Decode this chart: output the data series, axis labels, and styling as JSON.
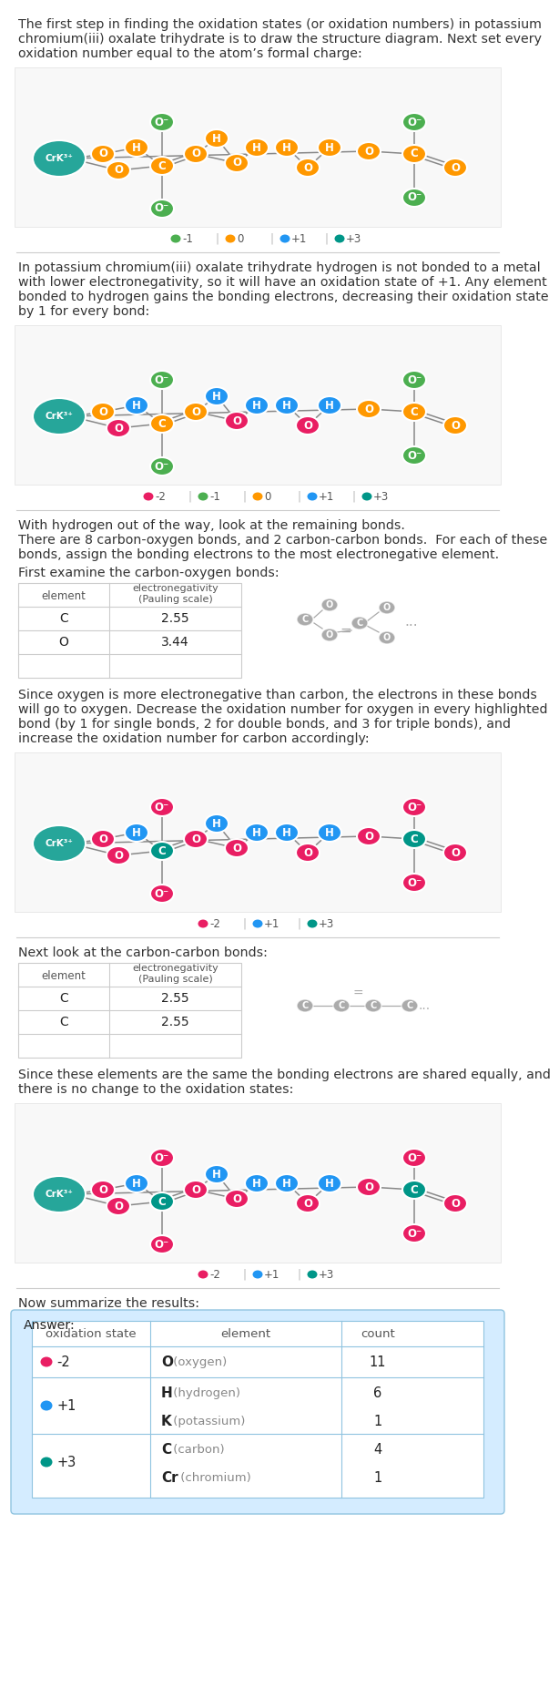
{
  "title_text": "The first step in finding the oxidation states (or oxidation numbers) in potassium\nchromium(iii) oxalate trihydrate is to draw the structure diagram. Next set every\noxidation number equal to the atom’s formal charge:",
  "section2_text": "In potassium chromium(iii) oxalate trihydrate hydrogen is not bonded to a metal\nwith lower electronegativity, so it will have an oxidation state of +1. Any element\nbonded to hydrogen gains the bonding electrons, decreasing their oxidation state\nby 1 for every bond:",
  "section3_text": "With hydrogen out of the way, look at the remaining bonds.\nThere are 8 carbon-oxygen bonds, and 2 carbon-carbon bonds.  For each of these\nbonds, assign the bonding electrons to the most electronegative element.",
  "section4_text": "First examine the carbon-oxygen bonds:",
  "section5_text": "Since oxygen is more electronegative than carbon, the electrons in these bonds\nwill go to oxygen. Decrease the oxidation number for oxygen in every highlighted\nbond (by 1 for single bonds, 2 for double bonds, and 3 for triple bonds), and\nincrease the oxidation number for carbon accordingly:",
  "section6_text": "Next look at the carbon-carbon bonds:",
  "section7_text": "Since these elements are the same the bonding electrons are shared equally, and\nthere is no change to the oxidation states:",
  "section8_text": "Now summarize the results:",
  "legend_mol1": [
    {
      "color": "#4caf50",
      "label": "-1"
    },
    {
      "color": "#ff9800",
      "label": "0"
    },
    {
      "color": "#2196f3",
      "label": "+1"
    },
    {
      "color": "#009688",
      "label": "+3"
    }
  ],
  "legend_mol2": [
    {
      "color": "#e91e63",
      "label": "-2"
    },
    {
      "color": "#4caf50",
      "label": "-1"
    },
    {
      "color": "#ff9800",
      "label": "0"
    },
    {
      "color": "#2196f3",
      "label": "+1"
    },
    {
      "color": "#009688",
      "label": "+3"
    }
  ],
  "legend_mol3": [
    {
      "color": "#e91e63",
      "label": "-2"
    },
    {
      "color": "#2196f3",
      "label": "+1"
    },
    {
      "color": "#009688",
      "label": "+3"
    }
  ],
  "co_rows": [
    [
      "C",
      "2.55"
    ],
    [
      "O",
      "3.44"
    ]
  ],
  "cc_rows": [
    [
      "C",
      "2.55"
    ],
    [
      "C",
      "2.55"
    ]
  ],
  "answer_rows": [
    {
      "state": "-2",
      "dot_color": "#e91e63",
      "show_dot": true,
      "elem": "O",
      "elem_rest": " (oxygen)",
      "count": "11"
    },
    {
      "state": "+1",
      "dot_color": "#2196f3",
      "show_dot": true,
      "elem": "H",
      "elem_rest": " (hydrogen)",
      "count": "6"
    },
    {
      "state": "",
      "dot_color": "",
      "show_dot": false,
      "elem": "K",
      "elem_rest": " (potassium)",
      "count": "1"
    },
    {
      "state": "+3",
      "dot_color": "#009688",
      "show_dot": true,
      "elem": "C",
      "elem_rest": " (carbon)",
      "count": "4"
    },
    {
      "state": "",
      "dot_color": "",
      "show_dot": false,
      "elem": "Cr",
      "elem_rest": " (chromium)",
      "count": "1"
    }
  ],
  "mol_bg": "#f8f8f8",
  "mol_border": "#e0e0e0",
  "bg": "#ffffff",
  "answer_bg": "#d4ecff",
  "answer_border": "#90c4e0",
  "divider_color": "#cccccc",
  "text_color": "#333333",
  "table_border": "#cccccc"
}
